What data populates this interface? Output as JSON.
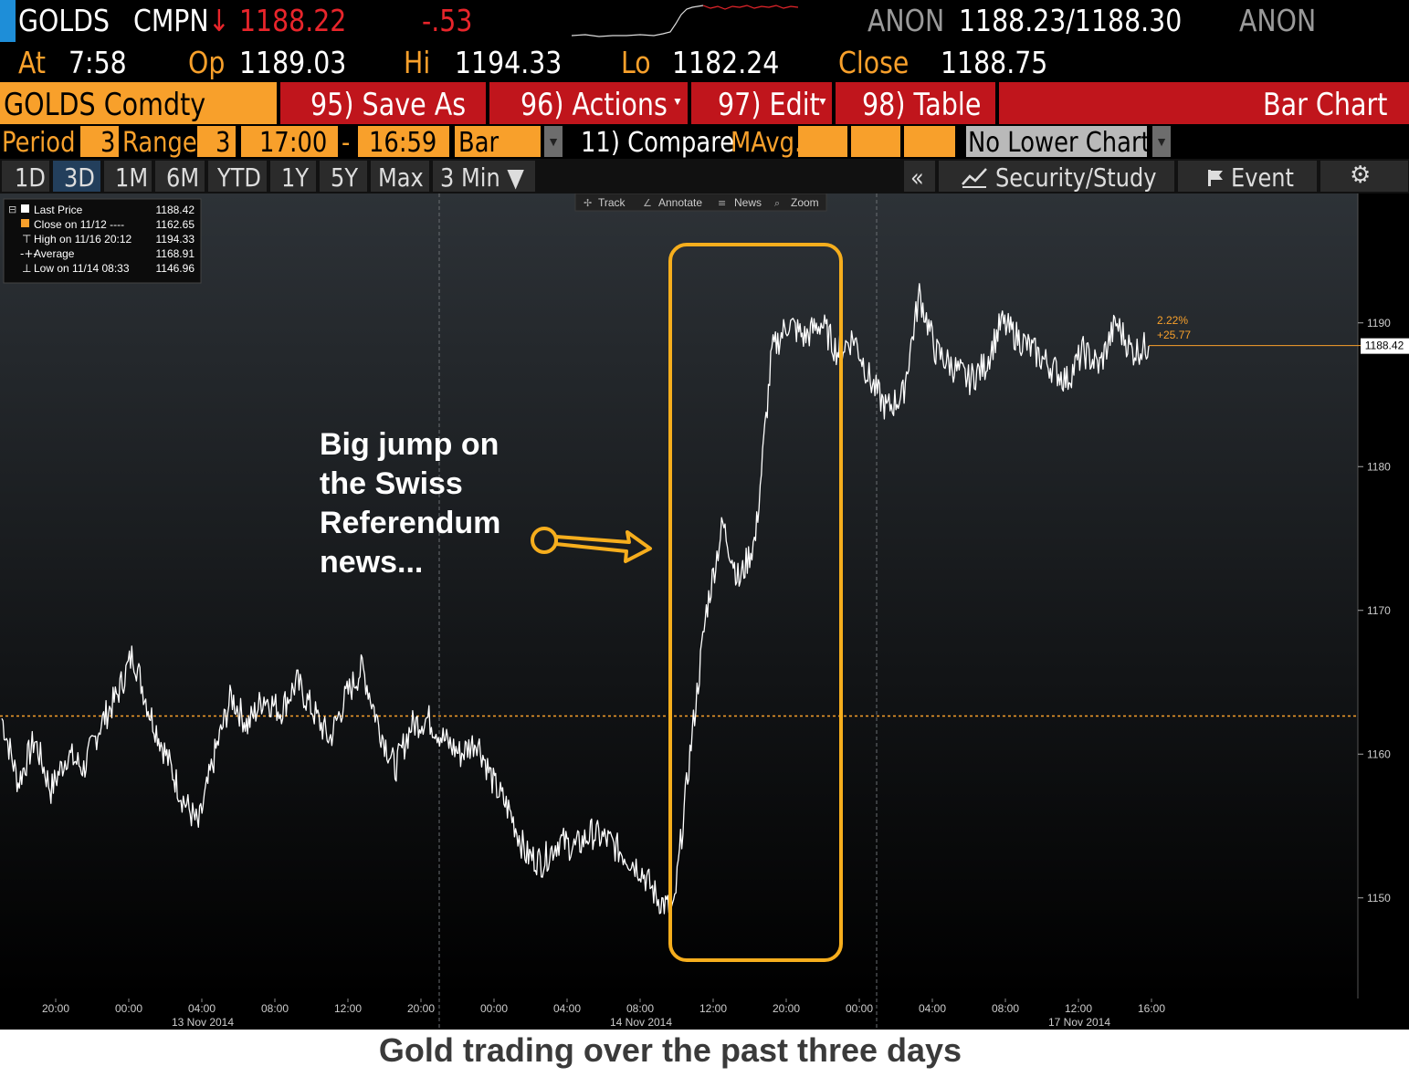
{
  "header": {
    "ticker": "GOLDS",
    "source": "CMPN",
    "arrow": "↓",
    "last": "1188.22",
    "change": "-.53",
    "bid_src": "ANON",
    "bid_ask": "1188.23/1188.30",
    "ask_src": "ANON",
    "at_label": "At",
    "at_time": "7:58",
    "op_label": "Op",
    "op_value": "1189.03",
    "hi_label": "Hi",
    "hi_value": "1194.33",
    "lo_label": "Lo",
    "lo_value": "1182.24",
    "close_label": "Close",
    "close_value": "1188.75"
  },
  "menubar": {
    "security": "GOLDS Comdty",
    "save_as": "95) Save As",
    "actions": "96) Actions",
    "edit": "97) Edit",
    "table": "98) Table",
    "chart_type": "Bar Chart"
  },
  "settings": {
    "period_label": "Period",
    "period_value": "3",
    "range_label": "Range",
    "range_value": "3",
    "start_time": "17:00",
    "dash": "-",
    "end_time": "16:59",
    "bar_type": "Bar",
    "compare": "11) Compare",
    "mavg": "MAvg.",
    "lower_chart": "No Lower Chart"
  },
  "tabs": {
    "items": [
      "1D",
      "3D",
      "1M",
      "6M",
      "YTD",
      "1Y",
      "5Y",
      "Max"
    ],
    "active": "3D",
    "interval": "3 Min ▼",
    "collapse": "«",
    "security_study": "Security/Study",
    "event": "Event"
  },
  "toolbar": {
    "track": "Track",
    "annotate": "Annotate",
    "news": "News",
    "zoom": "Zoom"
  },
  "legend": {
    "items": [
      {
        "label": "Last Price",
        "value": "1188.42"
      },
      {
        "label": "Close on 11/12 ----",
        "value": "1162.65"
      },
      {
        "label": "High on 11/16 20:12",
        "value": "1194.33"
      },
      {
        "label": "Average",
        "value": "1168.91"
      },
      {
        "label": "Low on 11/14 08:33",
        "value": "1146.96"
      }
    ]
  },
  "annotation": {
    "text_lines": [
      "Big jump on",
      "the Swiss",
      "Referendum",
      "news..."
    ]
  },
  "badges": {
    "pct": "2.22%",
    "abs": "+25.77",
    "last": "1188.42"
  },
  "colors": {
    "accent": "#f8a02b",
    "annotation": "#f6ae1d",
    "line": "#ffffff",
    "red": "#e8252b"
  },
  "caption": "Gold trading over the past three days",
  "chart_data": {
    "type": "line",
    "ylim": [
      1143,
      1199
    ],
    "yticks": [
      1150,
      1160,
      1170,
      1180,
      1190
    ],
    "reference_close": 1162.65,
    "last_price": 1188.42,
    "x_tick_labels": [
      "20:00",
      "00:00",
      "04:00",
      "08:00",
      "12:00",
      "20:00",
      "00:00",
      "04:00",
      "08:00",
      "12:00",
      "20:00",
      "00:00",
      "04:00",
      "08:00",
      "12:00",
      "16:00"
    ],
    "date_labels": [
      "13 Nov 2014",
      "14 Nov 2014",
      "17 Nov 2014"
    ],
    "series": [
      {
        "values": [
          1162.5,
          1158,
          1161,
          1157.5,
          1160,
          1159,
          1162,
          1164,
          1167,
          1163,
          1160,
          1157,
          1155,
          1160,
          1164,
          1162,
          1164,
          1163,
          1165,
          1163,
          1161,
          1164,
          1166,
          1162,
          1159,
          1162,
          1162.5,
          1161,
          1160,
          1161,
          1158,
          1156,
          1153,
          1152.5,
          1154,
          1153.5,
          1154.5,
          1154,
          1153,
          1152,
          1150,
          1149,
          1160,
          1170,
          1176,
          1172,
          1175,
          1188,
          1190,
          1189,
          1190,
          1188,
          1189,
          1186,
          1184,
          1185,
          1192,
          1188,
          1187,
          1186,
          1187,
          1190,
          1189,
          1188,
          1187,
          1186,
          1188,
          1187,
          1190,
          1188,
          1188.4
        ]
      }
    ]
  }
}
